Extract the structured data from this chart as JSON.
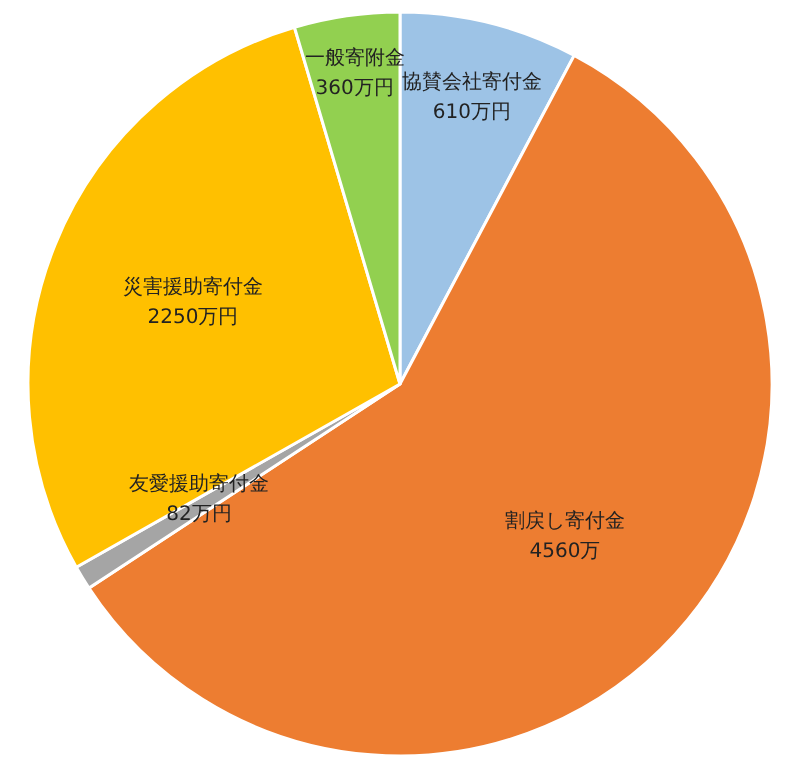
{
  "chart_data": {
    "type": "pie",
    "categories": [
      "協賛会社寄付金",
      "割戻し寄付金",
      "友愛援助寄付金",
      "災害援助寄付金",
      "一般寄附金"
    ],
    "values": [
      610,
      4560,
      82,
      2250,
      360
    ],
    "value_labels": [
      "610万円",
      "4560万",
      "82万円",
      "2250万円",
      "360万円"
    ],
    "colors": [
      "#9dc3e6",
      "#ed7d31",
      "#a5a5a5",
      "#ffc000",
      "#92d050"
    ],
    "legend": false
  }
}
